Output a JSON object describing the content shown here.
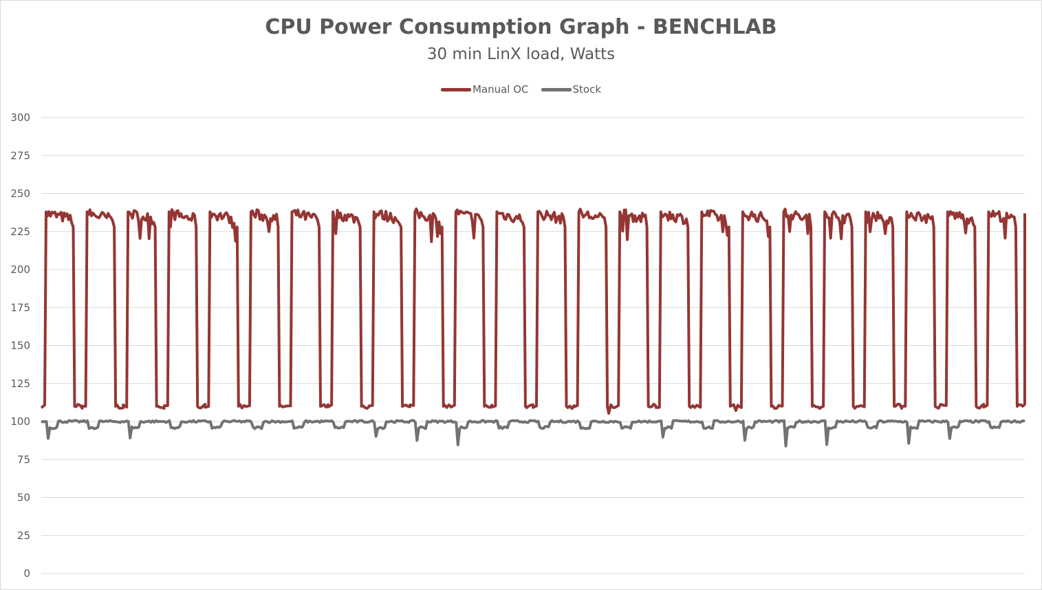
{
  "chart_data": {
    "type": "line",
    "title": "CPU Power Consumption Graph - BENCHLAB",
    "subtitle": "30 min LinX load, Watts",
    "xlabel": "",
    "ylabel": "",
    "ylim": [
      0,
      300
    ],
    "yticks": [
      0,
      25,
      50,
      75,
      100,
      125,
      150,
      175,
      200,
      225,
      250,
      275,
      300
    ],
    "grid": true,
    "legend_position": "top",
    "cycles": 24,
    "series": [
      {
        "name": "Manual OC",
        "color": "#943634",
        "load_level": 234,
        "idle_level": 110,
        "pattern": "square wave alternating between idle and load"
      },
      {
        "name": "Stock",
        "color": "#767171",
        "load_level": 100,
        "idle_level": 96,
        "pattern": "near-constant with periodic dips"
      }
    ]
  }
}
